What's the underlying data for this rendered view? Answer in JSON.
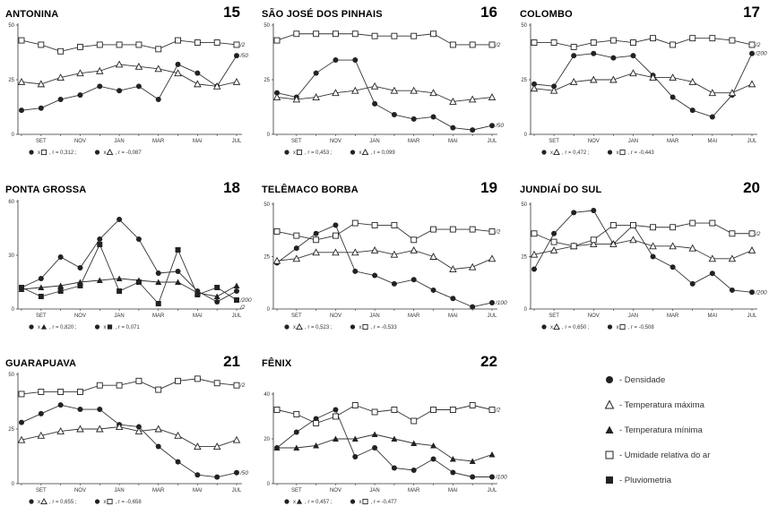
{
  "months": [
    "SET",
    "NOV",
    "JAN",
    "MAR",
    "MAI",
    "JUL"
  ],
  "legend": [
    {
      "symbol": "circle",
      "label": "- Densidade"
    },
    {
      "symbol": "triangle-open",
      "label": "- Temperatura máxima"
    },
    {
      "symbol": "triangle",
      "label": "- Temperatura mínima"
    },
    {
      "symbol": "square-open",
      "label": "- Umidade relativa do ar"
    },
    {
      "symbol": "square",
      "label": "- Pluviometria"
    }
  ],
  "chart_data": [
    {
      "type": "line",
      "title": "ANTONINA",
      "number": "15",
      "ylim": [
        0,
        50
      ],
      "yticks": [
        "50",
        "25",
        "0"
      ],
      "series": [
        {
          "name": "Densidade",
          "symbol": "circle",
          "scale_note": "/50",
          "values": [
            11,
            12,
            16,
            18,
            22,
            20,
            22,
            16,
            32,
            28,
            22,
            36
          ]
        },
        {
          "name": "Temperatura máxima",
          "symbol": "triangle-open",
          "values": [
            24,
            23,
            26,
            28,
            29,
            32,
            31,
            30,
            28,
            23,
            22,
            24
          ]
        },
        {
          "name": "Umidade relativa do ar",
          "symbol": "square-open",
          "scale_note": "/2",
          "values": [
            43,
            41,
            38,
            40,
            41,
            41,
            41,
            39,
            43,
            42,
            42,
            41
          ]
        }
      ],
      "stats": [
        {
          "symbols": [
            "circle",
            "square-open"
          ],
          "text": "r = 0,312"
        },
        {
          "symbols": [
            "circle",
            "triangle-open"
          ],
          "text": "r = -0,087"
        }
      ]
    },
    {
      "type": "line",
      "title": "SÃO JOSÉ DOS PINHAIS",
      "number": "16",
      "ylim": [
        0,
        50
      ],
      "yticks": [
        "50",
        "25",
        "0"
      ],
      "series": [
        {
          "name": "Densidade",
          "symbol": "circle",
          "scale_note": "/50",
          "values": [
            19,
            17,
            28,
            34,
            34,
            14,
            9,
            7,
            8,
            3,
            2,
            4
          ]
        },
        {
          "name": "Temperatura máxima",
          "symbol": "triangle-open",
          "values": [
            17,
            16,
            17,
            19,
            20,
            22,
            20,
            20,
            19,
            15,
            16,
            17
          ]
        },
        {
          "name": "Umidade relativa do ar",
          "symbol": "square-open",
          "scale_note": "/2",
          "values": [
            43,
            46,
            46,
            46,
            46,
            45,
            45,
            45,
            46,
            41,
            41,
            41
          ]
        }
      ],
      "stats": [
        {
          "symbols": [
            "circle",
            "square-open"
          ],
          "text": "r = 0,453"
        },
        {
          "symbols": [
            "circle",
            "triangle-open"
          ],
          "text": "r = 0,099"
        }
      ]
    },
    {
      "type": "line",
      "title": "COLOMBO",
      "number": "17",
      "ylim": [
        0,
        50
      ],
      "yticks": [
        "50",
        "25",
        "0"
      ],
      "series": [
        {
          "name": "Densidade",
          "symbol": "circle",
          "scale_note": "/200",
          "values": [
            23,
            22,
            36,
            37,
            35,
            36,
            27,
            17,
            11,
            8,
            18,
            37
          ]
        },
        {
          "name": "Temperatura máxima",
          "symbol": "triangle-open",
          "values": [
            21,
            20,
            24,
            25,
            25,
            28,
            26,
            26,
            24,
            19,
            19,
            23
          ]
        },
        {
          "name": "Umidade relativa do ar",
          "symbol": "square-open",
          "scale_note": "/2",
          "values": [
            42,
            42,
            40,
            42,
            43,
            42,
            44,
            41,
            44,
            44,
            43,
            41
          ]
        }
      ],
      "stats": [
        {
          "symbols": [
            "circle",
            "triangle-open"
          ],
          "text": "r = 0,472"
        },
        {
          "symbols": [
            "circle",
            "square-open"
          ],
          "text": "r = -0,443"
        }
      ]
    },
    {
      "type": "line",
      "title": "PONTA GROSSA",
      "number": "18",
      "ylim": [
        0,
        60
      ],
      "yticks": [
        "60",
        "30",
        "0"
      ],
      "series": [
        {
          "name": "Densidade",
          "symbol": "circle",
          "values": [
            12,
            17,
            29,
            23,
            39,
            50,
            39,
            20,
            21,
            10,
            4,
            10
          ]
        },
        {
          "name": "Temperatura mínima",
          "symbol": "triangle",
          "values": [
            11,
            12,
            13,
            15,
            16,
            17,
            16,
            15,
            15,
            9,
            7,
            13
          ]
        },
        {
          "name": "Pluviometria",
          "symbol": "square",
          "scale_note": "/200",
          "values": [
            12,
            7,
            10,
            13,
            36,
            10,
            15,
            3,
            33,
            8,
            12,
            5
          ]
        }
      ],
      "stats": [
        {
          "symbols": [
            "circle",
            "triangle"
          ],
          "text": "r = 0,820"
        },
        {
          "symbols": [
            "circle",
            "square"
          ],
          "text": "r = 0,071"
        }
      ],
      "extra_notes": [
        "/2"
      ]
    },
    {
      "type": "line",
      "title": "TELÊMACO BORBA",
      "number": "19",
      "ylim": [
        0,
        50
      ],
      "yticks": [
        "50",
        "25",
        "0"
      ],
      "series": [
        {
          "name": "Densidade",
          "symbol": "circle",
          "scale_note": "/100",
          "values": [
            22,
            29,
            36,
            40,
            18,
            16,
            12,
            14,
            9,
            5,
            1,
            3
          ]
        },
        {
          "name": "Temperatura máxima",
          "symbol": "triangle-open",
          "values": [
            23,
            24,
            27,
            27,
            27,
            28,
            26,
            28,
            25,
            19,
            20,
            24
          ]
        },
        {
          "name": "Umidade relativa do ar",
          "symbol": "square-open",
          "scale_note": "/2",
          "values": [
            37,
            35,
            33,
            35,
            41,
            40,
            40,
            33,
            38,
            38,
            38,
            37
          ]
        }
      ],
      "stats": [
        {
          "symbols": [
            "circle",
            "triangle-open"
          ],
          "text": "r = 0,523"
        },
        {
          "symbols": [
            "circle",
            "square-open"
          ],
          "text": "r = -0,533"
        }
      ]
    },
    {
      "type": "line",
      "title": "JUNDIAÍ DO SUL",
      "number": "20",
      "ylim": [
        0,
        50
      ],
      "yticks": [
        "50",
        "25",
        "0"
      ],
      "series": [
        {
          "name": "Densidade",
          "symbol": "circle",
          "scale_note": "/200",
          "values": [
            19,
            36,
            46,
            47,
            31,
            40,
            25,
            20,
            12,
            17,
            9,
            8
          ]
        },
        {
          "name": "Temperatura máxima",
          "symbol": "triangle-open",
          "values": [
            26,
            28,
            30,
            31,
            31,
            33,
            30,
            30,
            29,
            24,
            24,
            28
          ]
        },
        {
          "name": "Umidade relativa do ar",
          "symbol": "square-open",
          "scale_note": "/2",
          "values": [
            36,
            32,
            30,
            33,
            40,
            40,
            39,
            39,
            41,
            41,
            36,
            36
          ]
        }
      ],
      "stats": [
        {
          "symbols": [
            "circle",
            "triangle-open"
          ],
          "text": "r = 0,650"
        },
        {
          "symbols": [
            "circle",
            "square-open"
          ],
          "text": "r = -0,508"
        }
      ]
    },
    {
      "type": "line",
      "title": "GUARAPUAVA",
      "number": "21",
      "ylim": [
        0,
        50
      ],
      "yticks": [
        "50",
        "25",
        "0"
      ],
      "series": [
        {
          "name": "Densidade",
          "symbol": "circle",
          "scale_note": "/50",
          "values": [
            28,
            32,
            36,
            34,
            34,
            27,
            26,
            17,
            10,
            4,
            3,
            5
          ]
        },
        {
          "name": "Temperatura máxima",
          "symbol": "triangle-open",
          "values": [
            20,
            22,
            24,
            25,
            25,
            26,
            24,
            25,
            22,
            17,
            17,
            20
          ]
        },
        {
          "name": "Umidade relativa do ar",
          "symbol": "square-open",
          "scale_note": "/2",
          "values": [
            41,
            42,
            42,
            42,
            45,
            45,
            47,
            43,
            47,
            48,
            46,
            45
          ]
        }
      ],
      "stats": [
        {
          "symbols": [
            "circle",
            "triangle-open"
          ],
          "text": "r = 0,655"
        },
        {
          "symbols": [
            "circle",
            "square-open"
          ],
          "text": "r = -0,658"
        }
      ]
    },
    {
      "type": "line",
      "title": "FÊNIX",
      "number": "22",
      "ylim": [
        0,
        40
      ],
      "yticks": [
        "40",
        "20",
        "0"
      ],
      "series": [
        {
          "name": "Densidade",
          "symbol": "circle",
          "scale_note": "/100",
          "values": [
            16,
            23,
            29,
            33,
            12,
            16,
            7,
            6,
            11,
            5,
            3,
            3
          ]
        },
        {
          "name": "Temperatura mínima",
          "symbol": "triangle",
          "values": [
            16,
            16,
            17,
            20,
            20,
            22,
            20,
            18,
            17,
            11,
            10,
            13
          ]
        },
        {
          "name": "Umidade relativa do ar",
          "symbol": "square-open",
          "scale_note": "/2",
          "values": [
            33,
            31,
            27,
            30,
            35,
            32,
            33,
            28,
            33,
            33,
            35,
            33
          ]
        }
      ],
      "stats": [
        {
          "symbols": [
            "circle",
            "triangle"
          ],
          "text": "r = 0,457"
        },
        {
          "symbols": [
            "circle",
            "square-open"
          ],
          "text": "r = -0,477"
        }
      ]
    }
  ]
}
